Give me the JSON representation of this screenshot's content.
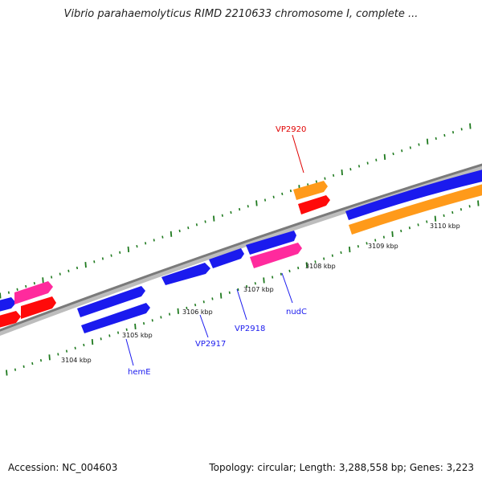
{
  "title": "Vibrio parahaemolyticus RIMD 2210633 chromosome I, complete ...",
  "footer": {
    "accession": "Accession: NC_004603",
    "summary": "Topology: circular; Length: 3,288,558 bp; Genes: 3,223"
  },
  "colors": {
    "backbone": "#8a8a8a",
    "tick": "#1f7a1f",
    "blue": "#1a1aee",
    "magenta": "#ff2a9d",
    "red": "#ff0a0a",
    "orange": "#ff9a1a",
    "red_label": "#e00000",
    "blue_label": "#1a1aee"
  },
  "scale": {
    "labels": [
      "3104 kbp",
      "3105 kbp",
      "3106 kbp",
      "3107 kbp",
      "3108 kbp",
      "3109 kbp",
      "3110 kbp"
    ]
  },
  "gene_labels": [
    {
      "name": "hemE",
      "color": "blue"
    },
    {
      "name": "VP2917",
      "color": "blue"
    },
    {
      "name": "VP2918",
      "color": "blue"
    },
    {
      "name": "nudC",
      "color": "blue"
    },
    {
      "name": "VP2920",
      "color": "red"
    }
  ]
}
